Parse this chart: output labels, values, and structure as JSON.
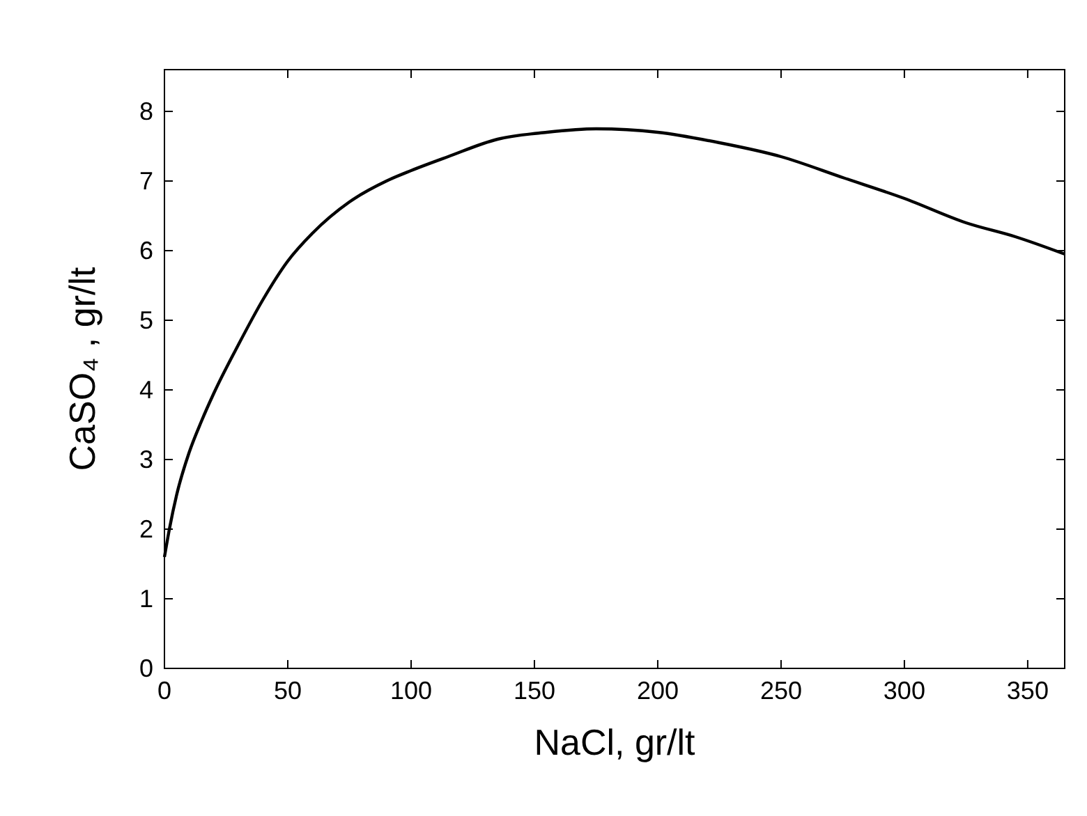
{
  "chart_data": {
    "type": "line",
    "xlabel": "NaCl, gr/lt",
    "ylabel": "CaSO₄ ,  gr/lt",
    "x": [
      0,
      2,
      5,
      10,
      15,
      20,
      30,
      40,
      50,
      60,
      75,
      90,
      100,
      115,
      135,
      155,
      175,
      200,
      225,
      250,
      275,
      300,
      325,
      345,
      365
    ],
    "series": [
      {
        "color": "#000000",
        "values": [
          1.6,
          2.0,
          2.5,
          3.1,
          3.55,
          3.95,
          4.65,
          5.3,
          5.85,
          6.25,
          6.7,
          7.0,
          7.15,
          7.35,
          7.6,
          7.7,
          7.75,
          7.7,
          7.55,
          7.35,
          7.05,
          6.75,
          6.4,
          6.2,
          5.95
        ]
      }
    ],
    "xlim": [
      0,
      365
    ],
    "xticks": [
      0,
      50,
      100,
      150,
      200,
      250,
      300,
      350
    ],
    "ylim": [
      0,
      8.6
    ],
    "yticks": [
      0,
      1,
      2,
      3,
      4,
      5,
      6,
      7,
      8
    ],
    "grid": false,
    "marker": "none",
    "line_style": "solid"
  }
}
